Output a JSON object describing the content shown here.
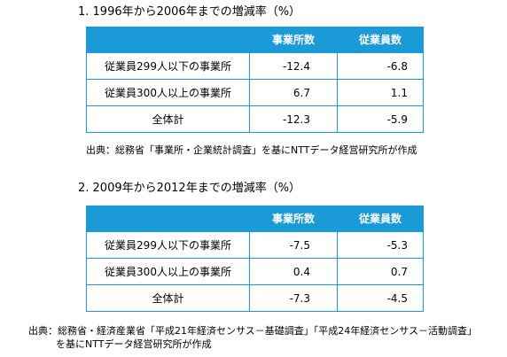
{
  "colors": {
    "accent": "#1a9bd7",
    "header_text": "#ffffff",
    "body_text": "#000000"
  },
  "sections": [
    {
      "title": "1. 1996年から2006年までの増減率（%）",
      "table": {
        "header": {
          "establishments": "事業所数",
          "employees": "従業員数"
        },
        "rows": [
          {
            "label": "従業員299人以下の事業所",
            "establishments": "-12.4",
            "employees": "-6.8"
          },
          {
            "label": "従業員300人以上の事業所",
            "establishments": "6.7",
            "employees": "1.1"
          },
          {
            "label": "全体計",
            "establishments": "-12.3",
            "employees": "-5.9"
          }
        ]
      },
      "source_lines": [
        "出典：総務省「事業所・企業統計調査」を基にNTTデータ経営研究所が作成"
      ]
    },
    {
      "title": "2. 2009年から2012年までの増減率（%）",
      "table": {
        "header": {
          "establishments": "事業所数",
          "employees": "従業員数"
        },
        "rows": [
          {
            "label": "従業員299人以下の事業所",
            "establishments": "-7.5",
            "employees": "-5.3"
          },
          {
            "label": "従業員300人以上の事業所",
            "establishments": "0.4",
            "employees": "0.7"
          },
          {
            "label": "全体計",
            "establishments": "-7.3",
            "employees": "-4.5"
          }
        ]
      },
      "source_lines": [
        "出典：総務省・経済産業省「平成21年経済センサス－基礎調査」「平成24年経済センサス－活動調査」",
        "を基にNTTデータ経営研究所が作成"
      ]
    }
  ]
}
